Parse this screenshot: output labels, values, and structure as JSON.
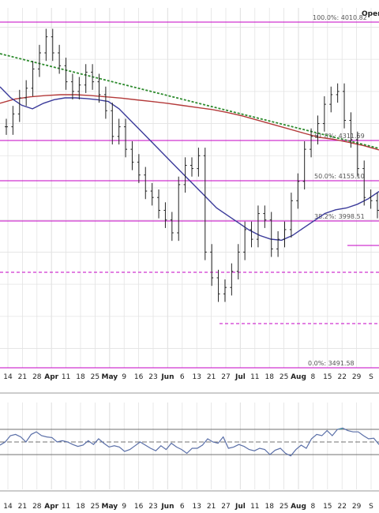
{
  "corner_label": "Open",
  "colors": {
    "background": "#ffffff",
    "grid": "#e3e3e3",
    "price_bars": "#222222",
    "fib_levels": "#c400c4",
    "ma_blue": "#3a3a9a",
    "ma_red": "#b43a3a",
    "trend_green": "#2e8b2e",
    "indicator_line": "#5a6fa8",
    "indicator_band": "#707070",
    "indicator_fill": "#3aa6a0"
  },
  "icons": [],
  "chart_data": [
    {
      "type": "line",
      "subtype": "ohlc-bars",
      "title": "",
      "xlabel": "",
      "ylabel": "",
      "grid": true,
      "x_axis": {
        "tick_labels": [
          "14",
          "21",
          "28",
          "Apr",
          "11",
          "18",
          "25",
          "May",
          "9",
          "16",
          "23",
          "Jun",
          "6",
          "13",
          "21",
          "27",
          "Jul",
          "11",
          "18",
          "25",
          "Aug",
          "8",
          "15",
          "22",
          "29",
          "S"
        ],
        "month_labels": [
          "Apr",
          "May",
          "Jun",
          "Jul",
          "Aug"
        ]
      },
      "fibonacci_levels": [
        {
          "label": "100.0%: 4010.82",
          "value": 4010.82
        },
        {
          "label": "61.8%: 4311.69",
          "value": 4311.69
        },
        {
          "label": "50.0%: 4155.10",
          "value": 4155.1
        },
        {
          "label": "38.2%: 3998.51",
          "value": 3998.51
        },
        {
          "label": "0.0%: 3491.58",
          "value": 3491.58
        }
      ],
      "reference_lines": [
        {
          "style": "dashed",
          "value": 3820
        },
        {
          "style": "dashed",
          "value": 3640
        },
        {
          "style": "solid-short",
          "value": 3930
        }
      ],
      "trendline": {
        "style": "dotted",
        "from": [
          0,
          4540
        ],
        "to": [
          1,
          4300
        ]
      },
      "series": [
        {
          "kind": "price",
          "values": [
            4190,
            4230,
            4280,
            4310,
            4370,
            4420,
            4470,
            4420,
            4380,
            4330,
            4300,
            4320,
            4360,
            4330,
            4290,
            4240,
            4160,
            4190,
            4120,
            4080,
            4040,
            3990,
            3970,
            3930,
            3900,
            3860,
            4010,
            4070,
            4060,
            4100,
            3800,
            3720,
            3670,
            3690,
            3740,
            3800,
            3870,
            3840,
            3920,
            3900,
            3810,
            3840,
            3870,
            3960,
            4020,
            4120,
            4160,
            4200,
            4260,
            4290,
            4300,
            4210,
            4150,
            4060,
            3970,
            3960,
            3930
          ]
        },
        {
          "kind": "moving-average-short",
          "values": [
            4330,
            4300,
            4280,
            4270,
            4285,
            4295,
            4300,
            4300,
            4298,
            4295,
            4290,
            4270,
            4240,
            4210,
            4180,
            4150,
            4120,
            4090,
            4060,
            4030,
            4000,
            3980,
            3960,
            3940,
            3925,
            3915,
            3912,
            3925,
            3945,
            3965,
            3985,
            3995,
            4000,
            4010,
            4025,
            4045
          ]
        },
        {
          "kind": "moving-average-long",
          "values": [
            4410,
            4420,
            4425,
            4428,
            4430,
            4430,
            4428,
            4425,
            4422,
            4418,
            4414,
            4410,
            4405,
            4400,
            4395,
            4388,
            4380,
            4370,
            4360,
            4350,
            4340,
            4330,
            4325,
            4318,
            4310,
            4300
          ]
        }
      ]
    },
    {
      "type": "line",
      "title": "",
      "xlabel": "",
      "ylabel": "",
      "grid": true,
      "ylim": [
        0,
        100
      ],
      "bands": [
        70,
        50,
        30
      ],
      "x_axis": {
        "tick_labels": [
          "14",
          "21",
          "28",
          "Apr",
          "11",
          "18",
          "25",
          "May",
          "9",
          "16",
          "23",
          "Jun",
          "6",
          "13",
          "21",
          "27",
          "Jul",
          "11",
          "18",
          "25",
          "Aug",
          "8",
          "15",
          "22",
          "29",
          "S"
        ]
      },
      "series": [
        {
          "kind": "oscillator",
          "values": [
            45,
            50,
            60,
            62,
            58,
            50,
            62,
            66,
            60,
            58,
            57,
            50,
            52,
            50,
            46,
            43,
            45,
            52,
            46,
            55,
            48,
            42,
            44,
            42,
            35,
            38,
            44,
            50,
            45,
            40,
            36,
            44,
            38,
            48,
            42,
            38,
            32,
            40,
            40,
            45,
            55,
            50,
            48,
            58,
            40,
            42,
            46,
            43,
            38,
            36,
            40,
            38,
            30,
            37,
            40,
            32,
            28,
            38,
            45,
            40,
            55,
            62,
            60,
            68,
            60,
            70,
            72,
            68,
            66,
            66,
            60,
            55,
            56,
            46
          ]
        }
      ]
    }
  ]
}
